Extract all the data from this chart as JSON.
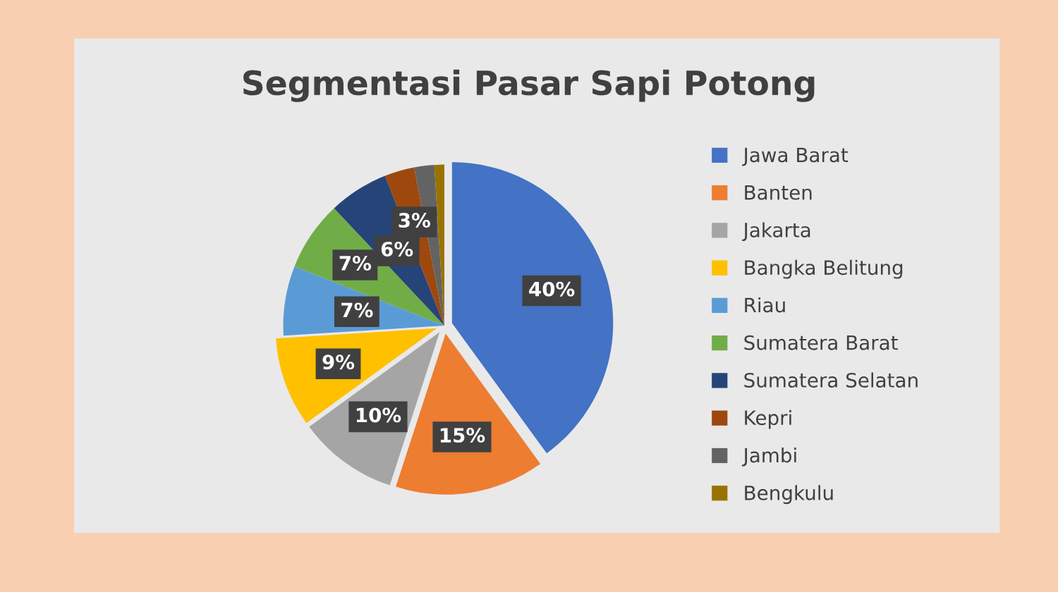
{
  "chart_data": {
    "type": "pie",
    "title": "Segmentasi Pasar Sapi Potong",
    "categories": [
      "Jawa Barat",
      "Banten",
      "Jakarta",
      "Bangka Belitung",
      "Riau",
      "Sumatera Barat",
      "Sumatera Selatan",
      "Kepri",
      "Jambi",
      "Bengkulu"
    ],
    "values": [
      40,
      15,
      10,
      9,
      7,
      7,
      6,
      3,
      2,
      1
    ],
    "colors": [
      "#4472c4",
      "#ed7d31",
      "#a5a5a5",
      "#ffc000",
      "#5b9bd5",
      "#70ad47",
      "#264478",
      "#9e480e",
      "#636363",
      "#997300"
    ],
    "value_labels": [
      "40%",
      "15%",
      "10%",
      "9%",
      "7%",
      "7%",
      "6%",
      "3%",
      null,
      null
    ],
    "legend": "right"
  }
}
